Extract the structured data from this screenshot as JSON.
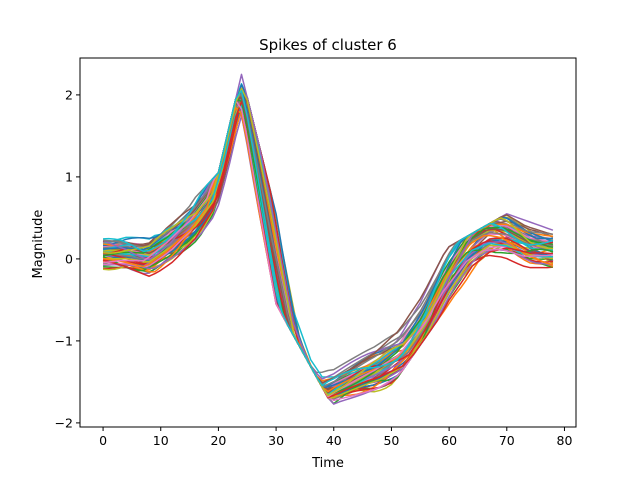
{
  "chart_data": {
    "type": "line",
    "title": "Spikes of cluster 6",
    "xlabel": "Time",
    "ylabel": "Magnitude",
    "xlim": [
      -4.0,
      82.0
    ],
    "ylim": [
      -2.05,
      2.45
    ],
    "xticks": [
      0,
      10,
      20,
      30,
      40,
      50,
      60,
      70,
      80
    ],
    "yticks": [
      -2,
      -1,
      0,
      1,
      2
    ],
    "xtick_labels": [
      "0",
      "10",
      "20",
      "30",
      "40",
      "50",
      "60",
      "70",
      "80"
    ],
    "ytick_labels": [
      "−2",
      "−1",
      "0",
      "1",
      "2"
    ],
    "grid": false,
    "legend": "none",
    "series_count": 60,
    "colors": [
      "#1f77b4",
      "#ff7f0e",
      "#2ca02c",
      "#d62728",
      "#9467bd",
      "#8c564b",
      "#e377c2",
      "#7f7f7f",
      "#bcbd22",
      "#17becf"
    ],
    "mean_waveform": {
      "x": [
        0,
        4,
        8,
        12,
        16,
        19,
        21,
        23,
        24,
        25,
        27,
        30,
        33,
        36,
        38,
        40,
        44,
        48,
        52,
        56,
        60,
        64,
        67,
        70,
        74,
        78
      ],
      "y": [
        0.08,
        0.08,
        0.02,
        0.2,
        0.45,
        0.75,
        1.25,
        1.85,
        2.02,
        1.85,
        1.1,
        -0.05,
        -1.05,
        -1.55,
        -1.68,
        -1.6,
        -1.48,
        -1.35,
        -1.15,
        -0.75,
        -0.2,
        0.2,
        0.32,
        0.3,
        0.15,
        0.1
      ]
    },
    "spread_envelope": {
      "x": [
        0,
        10,
        20,
        24,
        30,
        40,
        50,
        60,
        70,
        78
      ],
      "lower": [
        -0.22,
        -0.3,
        0.45,
        1.72,
        -0.55,
        -1.82,
        -1.55,
        -0.55,
        -0.1,
        -0.25
      ],
      "upper": [
        0.28,
        0.3,
        1.05,
        2.25,
        0.55,
        -1.3,
        -0.85,
        0.15,
        0.55,
        0.35
      ]
    }
  }
}
